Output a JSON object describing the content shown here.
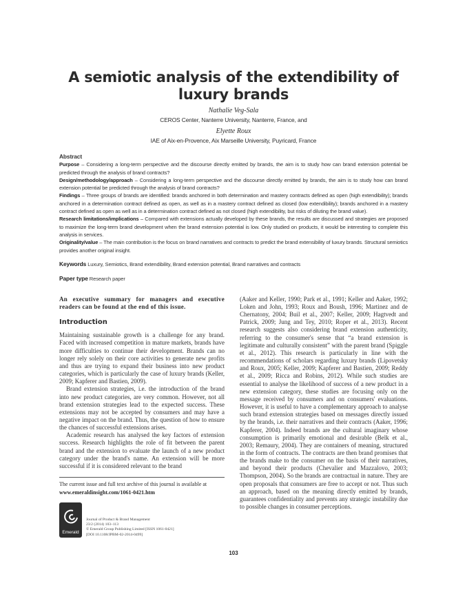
{
  "title": "A semiotic analysis of the extendibility of luxury brands",
  "authors": [
    {
      "name": "Nathalie Veg-Sala",
      "affiliation": "CEROS Center, Nanterre University, Nanterre, France, and"
    },
    {
      "name": "Elyette Roux",
      "affiliation": "IAE of Aix-en-Provence, Aix Marseille University, Puyricard, France"
    }
  ],
  "abstract": {
    "heading": "Abstract",
    "sections": [
      {
        "label": "Purpose",
        "text": " – Considering a long-term perspective and the discourse directly emitted by brands, the aim is to study how can brand extension potential be predicted through the analysis of brand contracts?"
      },
      {
        "label": "Design/methodology/approach",
        "text": " – Considering a long-term perspective and the discourse directly emitted by brands, the aim is to study how can brand extension potential be predicted through the analysis of brand contracts?"
      },
      {
        "label": "Findings",
        "text": " – Three groups of brands are identified: brands anchored in both determination and mastery contracts defined as open (high extendibility); brands anchored in a determination contract defined as open, as well as in a mastery contract defined as closed (low extendibility); brands anchored in a mastery contract defined as open as well as in a determination contract defined as not closed (high extendibility, but risks of diluting the brand value)."
      },
      {
        "label": "Research limitations/implications",
        "text": " – Compared with extensions actually developed by these brands, the results are discussed and strategies are proposed to maximize the long-term brand development when the brand extension potential is low. Only studied on products, it would be interesting to complete this analysis in services."
      },
      {
        "label": "Originality/value",
        "text": " – The main contribution is the focus on brand narratives and contracts to predict the brand extensibility of luxury brands. Structural semiotics provides another original insight."
      }
    ]
  },
  "keywords": {
    "label": "Keywords",
    "text": " Luxury, Semiotics, Brand extendibility, Brand extension potential, Brand narratives and contracts"
  },
  "paper_type": {
    "label": "Paper type",
    "text": " Research paper"
  },
  "executive_summary": "An executive summary for managers and executive readers can be found at the end of this issue.",
  "introduction": {
    "heading": "Introduction",
    "left_paragraphs": [
      "Maintaining sustainable growth is a challenge for any brand. Faced with increased competition in mature markets, brands have more difficulties to continue their development. Brands can no longer rely solely on their core activities to generate new profits and thus are trying to expand their business into new product categories, which is particularly the case of luxury brands (Keller, 2009; Kapferer and Bastien, 2009).",
      "Brand extension strategies, i.e. the introduction of the brand into new product categories, are very common. However, not all brand extension strategies lead to the expected success. These extensions may not be accepted by consumers and may have a negative impact on the brand. Thus, the question of how to ensure the chances of successful extensions arises.",
      "Academic research has analysed the key factors of extension success. Research highlights the role of fit between the parent brand and the extension to evaluate the launch of a new product category under the brand's name. An extension will be more successful if it is considered relevant to the brand"
    ],
    "right_paragraphs": [
      "(Aaker and Keller, 1990; Park et al., 1991; Keller and Aaker, 1992; Loken and John, 1993; Roux and Boush, 1996; Martinez and de Chernatony, 2004; Buil et al., 2007; Keller, 2009; Hagtvedt and Patrick, 2009; Jung and Tey, 2010; Roper et al., 2013). Recent research suggests also considering brand extension authenticity, referring to the consumer's sense that “a brand extension is legitimate and culturally consistent” with the parent brand (Spiggle et al., 2012). This research is particularly in line with the recommendations of scholars regarding luxury brands (Lipovetsky and Roux, 2005; Keller, 2009; Kapferer and Bastien, 2009; Reddy et al., 2009; Ricca and Robins, 2012). While such studies are essential to analyse the likelihood of success of a new product in a new extension category, these studies are focusing only on the message received by consumers and on consumers' evaluations. However, it is useful to have a complementary approach to analyse such brand extension strategies based on messages directly issued by the brands, i.e. their narratives and their contracts (Aaker, 1996; Kapferer, 2004). Indeed brands are the cultural imaginary whose consumption is primarily emotional and desirable (Belk et al., 2003; Remaury, 2004). They are containers of meaning, structured in the form of contracts. The contracts are then brand promises that the brands make to the consumer on the basis of their narratives, and beyond their products (Chevalier and Mazzalovo, 2003; Thompson, 2004). So the brands are contractual in nature. They are open proposals that consumers are free to accept or not. Thus such an approach, based on the meaning directly emitted by brands, guarantees confidentiality and prevents any strategic instability due to possible changes in consumer perceptions."
    ]
  },
  "footer": {
    "archive_note": "The current issue and full text archive of this journal is available at",
    "archive_url": "www.emeraldinsight.com/1061-0421.htm",
    "logo_text": "Emerald",
    "journal_lines": [
      "Journal of Product & Brand Management",
      "23/2 (2014) 103–113",
      "© Emerald Group Publishing Limited [ISSN 1061-0421]",
      "[DOI 10.1108/JPBM-02-2014-0499]"
    ]
  },
  "page_number": "103",
  "colors": {
    "text": "#2a2a2a",
    "logo_bg": "#2e2e2e"
  }
}
